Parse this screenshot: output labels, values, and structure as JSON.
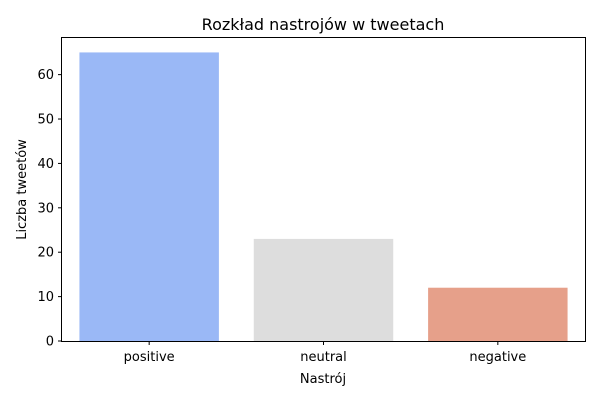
{
  "chart_data": {
    "type": "bar",
    "title": "Rozkład nastrojów w tweetach",
    "xlabel": "Nastrój",
    "ylabel": "Liczba tweetów",
    "categories": [
      "positive",
      "neutral",
      "negative"
    ],
    "values": [
      65,
      23,
      12
    ],
    "colors": [
      "#9ab8f6",
      "#dddddd",
      "#e6a08a"
    ],
    "ylim": [
      0,
      68.25
    ],
    "yticks": [
      0,
      10,
      20,
      30,
      40,
      50,
      60
    ],
    "grid": false,
    "legend": "none"
  }
}
